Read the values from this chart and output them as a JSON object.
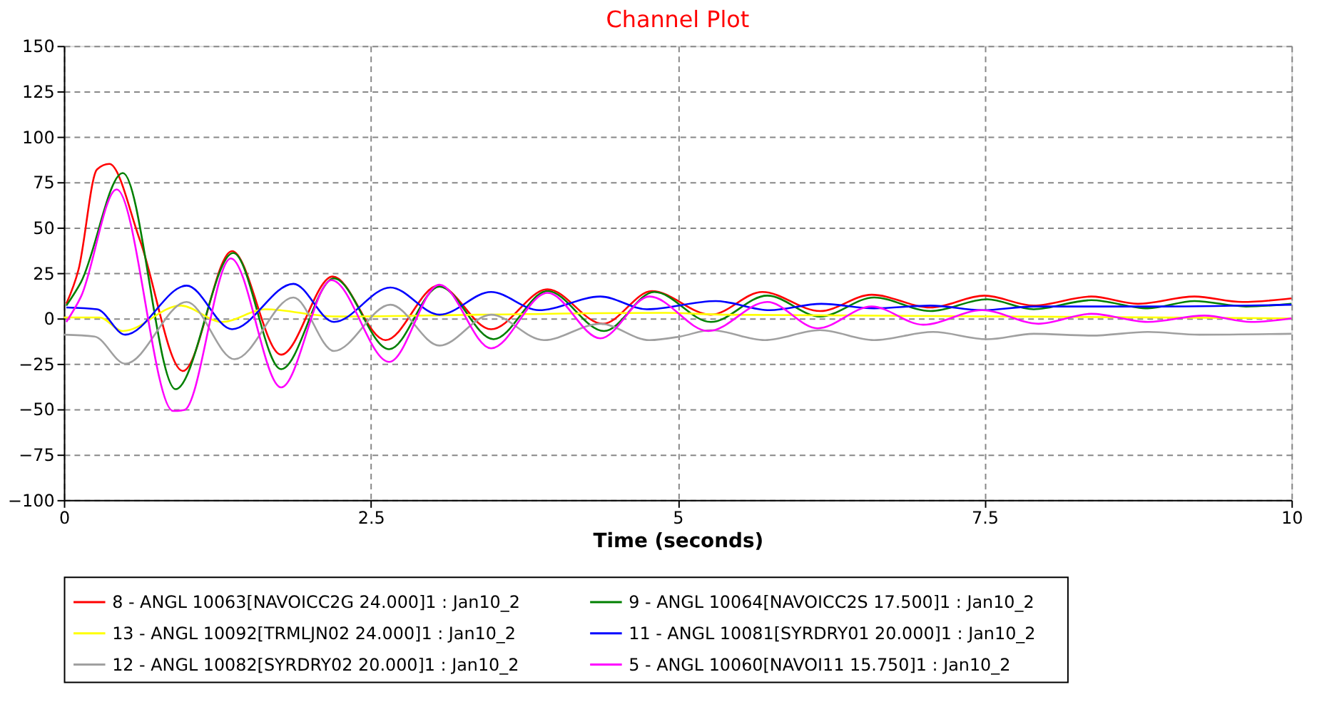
{
  "chart_data": {
    "type": "line",
    "title": "Channel Plot",
    "xlabel": "Time (seconds)",
    "xlim": [
      0,
      10
    ],
    "xticks": [
      0,
      2.5,
      5,
      7.5,
      10
    ],
    "ylim": [
      -100,
      150
    ],
    "yticks": [
      -100,
      -75,
      -50,
      -25,
      0,
      25,
      50,
      75,
      100,
      125,
      150
    ],
    "grid": true,
    "legend": "bottom",
    "line_style": "solid",
    "marker": "none",
    "series": [
      {
        "name": "8 - ANGL 10063[NAVOICC2G    24.000]1 : Jan10_2",
        "color": "#ff0000",
        "x": [
          0.02,
          0.12,
          0.27,
          0.37,
          0.62,
          0.97,
          1.37,
          1.77,
          2.19,
          2.62,
          3.05,
          3.48,
          3.94,
          4.39,
          4.79,
          5.27,
          5.69,
          6.16,
          6.58,
          7.06,
          7.5,
          7.9,
          8.37,
          8.75,
          9.21,
          9.6,
          10
        ],
        "values": [
          8,
          27,
          82,
          85,
          43,
          -29,
          37,
          -20,
          23,
          -12,
          18,
          -6,
          16,
          -3,
          15,
          2,
          14.5,
          4,
          13,
          6,
          12.5,
          7,
          12,
          8,
          12,
          9,
          11
        ]
      },
      {
        "name": "9 - ANGL 10064[NAVOICC2S    17.500]1 : Jan10_2",
        "color": "#008000",
        "x": [
          0.02,
          0.14,
          0.48,
          0.91,
          1.38,
          1.77,
          2.2,
          2.65,
          3.06,
          3.5,
          3.94,
          4.4,
          4.81,
          5.27,
          5.73,
          6.16,
          6.6,
          7.06,
          7.52,
          7.9,
          8.37,
          8.83,
          9.21,
          9.63,
          10
        ],
        "values": [
          7,
          20,
          80,
          -39,
          36,
          -28,
          22,
          -17,
          17.5,
          -11.5,
          15,
          -7,
          14.5,
          -2,
          12.5,
          1,
          11.5,
          4,
          10.5,
          5,
          10,
          5.5,
          9.5,
          6.5,
          8
        ]
      },
      {
        "name": "13 - ANGL 10092[TRMLJN02     24.000]1 : Jan10_2",
        "color": "#ffff00",
        "x": [
          0,
          0.29,
          0.48,
          0.95,
          1.29,
          1.64,
          2.21,
          3.37,
          4.9,
          5.37,
          10
        ],
        "values": [
          0.5,
          0.5,
          -7,
          7,
          -2,
          5,
          1,
          2,
          3,
          2,
          0
        ]
      },
      {
        "name": "11 - ANGL 10081[SYRDRY01     20.000]1 : Jan10_2",
        "color": "#0000ff",
        "x": [
          0.02,
          0.27,
          0.5,
          1.0,
          1.37,
          1.87,
          2.2,
          2.66,
          3.06,
          3.48,
          3.87,
          4.37,
          4.75,
          5.31,
          5.75,
          6.17,
          6.6,
          7.06,
          7.48,
          7.9,
          8.83,
          10
        ],
        "values": [
          6,
          5,
          -9,
          18,
          -6,
          19,
          -2,
          17,
          2,
          14.5,
          4.5,
          12,
          5,
          9.5,
          4.5,
          8,
          5.5,
          7,
          4.5,
          6.5,
          6.5,
          7.5
        ]
      },
      {
        "name": "12 - ANGL 10082[SYRDRY02     20.000]1 : Jan10_2",
        "color": "#a0a0a0",
        "x": [
          0,
          0.25,
          0.5,
          1.0,
          1.39,
          1.87,
          2.2,
          2.66,
          3.06,
          3.48,
          3.91,
          4.37,
          4.77,
          5.02,
          5.27,
          5.71,
          6.16,
          6.6,
          7.08,
          7.52,
          7.9,
          8.37,
          8.83,
          9.25,
          10
        ],
        "values": [
          -9,
          -10,
          -25,
          9,
          -22.5,
          11.5,
          -18,
          7.5,
          -15,
          2,
          -12,
          -3,
          -12,
          -10,
          -6.5,
          -12,
          -6.5,
          -12,
          -7.5,
          -11.5,
          -8.5,
          -9.5,
          -7.5,
          -9,
          -8.5
        ]
      },
      {
        "name": "5 - ANGL 10060[NAVOI11      15.750]1 : Jan10_2",
        "color": "#ff00ff",
        "x": [
          0.02,
          0.14,
          0.43,
          0.89,
          0.98,
          1.36,
          1.77,
          2.18,
          2.65,
          3.06,
          3.48,
          3.94,
          4.37,
          4.77,
          5.25,
          5.73,
          6.14,
          6.58,
          7.0,
          7.48,
          7.94,
          8.37,
          8.83,
          9.29,
          9.67,
          10
        ],
        "values": [
          -2,
          12,
          71,
          -51,
          -50.5,
          33,
          -38,
          21,
          -24,
          18.5,
          -16.5,
          14,
          -11,
          12,
          -7,
          9,
          -5.5,
          6.5,
          -3.5,
          4.5,
          -3,
          2.5,
          -2,
          1.5,
          -2,
          0
        ]
      }
    ]
  }
}
